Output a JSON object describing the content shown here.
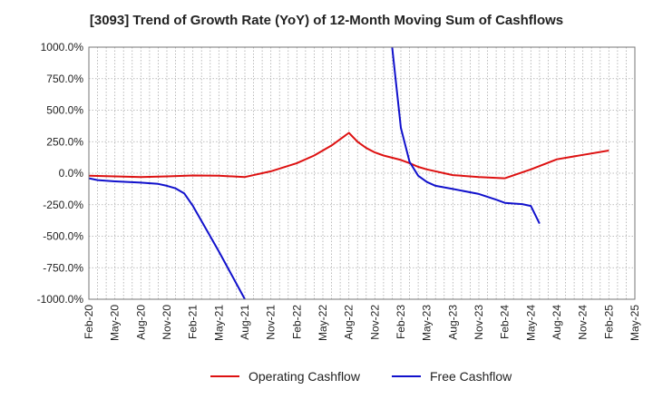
{
  "chart_data": {
    "type": "line",
    "title": "[3093]  Trend of Growth Rate (YoY) of 12-Month Moving Sum of Cashflows",
    "xlabel": "",
    "ylabel": "",
    "ylim": [
      -1000,
      1000
    ],
    "y_ticks": [
      1000,
      750,
      500,
      250,
      0,
      -250,
      -500,
      -750,
      -1000
    ],
    "y_tick_labels": [
      "1000.0%",
      "750.0%",
      "500.0%",
      "250.0%",
      "0.0%",
      "-250.0%",
      "-500.0%",
      "-750.0%",
      "-1000.0%"
    ],
    "x_ticks": [
      "Feb-20",
      "May-20",
      "Aug-20",
      "Nov-20",
      "Feb-21",
      "May-21",
      "Aug-21",
      "Nov-21",
      "Feb-22",
      "May-22",
      "Aug-22",
      "Nov-22",
      "Feb-23",
      "May-23",
      "Aug-23",
      "Nov-23",
      "Feb-24",
      "May-24",
      "Aug-24",
      "Nov-24",
      "Feb-25",
      "May-25"
    ],
    "grid": true,
    "legend_position": "bottom-center",
    "series": [
      {
        "name": "Operating Cashflow",
        "color": "#dd1111",
        "points": [
          [
            "Feb-20",
            -20
          ],
          [
            "May-20",
            -25
          ],
          [
            "Aug-20",
            -30
          ],
          [
            "Nov-20",
            -25
          ],
          [
            "Feb-21",
            -18
          ],
          [
            "May-21",
            -20
          ],
          [
            "Aug-21",
            -30
          ],
          [
            "Nov-21",
            15
          ],
          [
            "Feb-22",
            80
          ],
          [
            "Apr-22",
            140
          ],
          [
            "Jun-22",
            220
          ],
          [
            "Aug-22",
            320
          ],
          [
            "Sep-22",
            250
          ],
          [
            "Oct-22",
            200
          ],
          [
            "Nov-22",
            165
          ],
          [
            "Dec-22",
            140
          ],
          [
            "Feb-23",
            105
          ],
          [
            "Mar-23",
            80
          ],
          [
            "Apr-23",
            50
          ],
          [
            "May-23",
            30
          ],
          [
            "Aug-23",
            -15
          ],
          [
            "Nov-23",
            -30
          ],
          [
            "Feb-24",
            -40
          ],
          [
            "May-24",
            30
          ],
          [
            "Aug-24",
            110
          ],
          [
            "Nov-24",
            145
          ],
          [
            "Feb-25",
            180
          ]
        ]
      },
      {
        "name": "Free Cashflow",
        "color": "#1111cc",
        "points": [
          [
            "Feb-20",
            -40
          ],
          [
            "Mar-20",
            -55
          ],
          [
            "May-20",
            -65
          ],
          [
            "Aug-20",
            -75
          ],
          [
            "Oct-20",
            -85
          ],
          [
            "Nov-20",
            -100
          ],
          [
            "Dec-20",
            -120
          ],
          [
            "Jan-21",
            -160
          ],
          [
            "Feb-21",
            -260
          ],
          [
            "May-21",
            -620
          ],
          [
            "Aug-21",
            -1000
          ],
          null,
          [
            "Jan-23",
            1000
          ],
          [
            "Feb-23",
            360
          ],
          [
            "Mar-23",
            90
          ],
          [
            "Apr-23",
            -20
          ],
          [
            "May-23",
            -70
          ],
          [
            "Jun-23",
            -100
          ],
          [
            "Aug-23",
            -125
          ],
          [
            "Nov-23",
            -165
          ],
          [
            "Jan-24",
            -210
          ],
          [
            "Feb-24",
            -235
          ],
          [
            "Apr-24",
            -245
          ],
          [
            "May-24",
            -260
          ],
          [
            "Jun-24",
            -400
          ]
        ]
      }
    ]
  }
}
